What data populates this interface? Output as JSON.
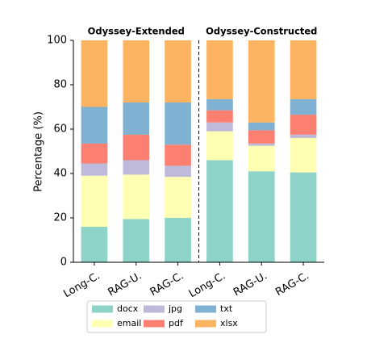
{
  "chart_data": {
    "type": "stacked_bar",
    "group_labels": [
      "Odyssey-Extended",
      "Odyssey-Constructed"
    ],
    "categories": [
      "Long-C.",
      "RAG-U.",
      "RAG-C.",
      "Long-C.",
      "RAG-U.",
      "RAG-C."
    ],
    "y_label": "Percentage (%)",
    "ylim": [
      0,
      100
    ],
    "yticks": [
      0,
      20,
      40,
      60,
      80,
      100
    ],
    "legend": "bottom",
    "series": [
      {
        "name": "docx",
        "color": "#8dd3c7",
        "values": [
          16,
          19.5,
          20,
          46,
          41,
          40.5
        ]
      },
      {
        "name": "email",
        "color": "#ffffb3",
        "values": [
          23,
          20,
          18.5,
          13,
          11.5,
          15.5
        ]
      },
      {
        "name": "jpg",
        "color": "#bebada",
        "values": [
          5.5,
          6.5,
          5,
          4,
          1,
          1.5
        ]
      },
      {
        "name": "pdf",
        "color": "#fb8072",
        "values": [
          9,
          11.5,
          9.5,
          5.5,
          6,
          9
        ]
      },
      {
        "name": "txt",
        "color": "#80b1d3",
        "values": [
          16.5,
          14.5,
          19,
          5,
          3.5,
          7
        ]
      },
      {
        "name": "xlsx",
        "color": "#fdb462",
        "values": [
          30,
          28,
          28,
          26.5,
          37,
          26.5
        ]
      }
    ]
  }
}
